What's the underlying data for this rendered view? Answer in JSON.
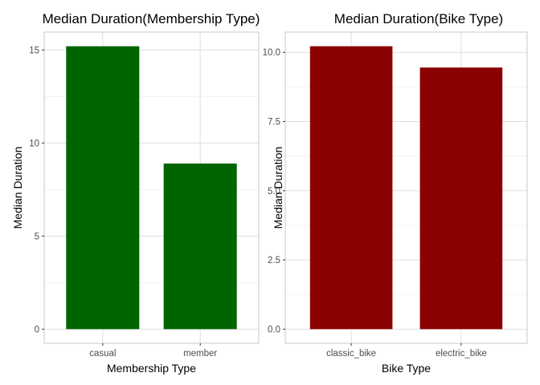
{
  "chart_data": [
    {
      "type": "bar",
      "title": "Median Duration(Membership Type)",
      "xlabel": "Membership Type",
      "ylabel": "Median Duration",
      "categories": [
        "casual",
        "member"
      ],
      "values": [
        15.2,
        8.9
      ],
      "yticks": [
        0,
        5,
        10,
        15
      ],
      "ytick_labels": [
        "0",
        "5",
        "10",
        "15"
      ],
      "ylim": [
        -0.76,
        15.96
      ],
      "bar_color": "#006400",
      "grid": true,
      "legend": "none"
    },
    {
      "type": "bar",
      "title": "Median Duration(Bike Type)",
      "xlabel": "Bike Type",
      "ylabel": "Median Duration",
      "categories": [
        "classic_bike",
        "electric_bike"
      ],
      "values": [
        10.22,
        9.45
      ],
      "yticks": [
        0,
        2.5,
        5,
        7.5,
        10
      ],
      "ytick_labels": [
        "0.0",
        "2.5",
        "5.0",
        "7.5",
        "10.0"
      ],
      "ylim": [
        -0.511,
        10.731
      ],
      "bar_color": "#8B0000",
      "grid": true,
      "legend": "none"
    }
  ]
}
